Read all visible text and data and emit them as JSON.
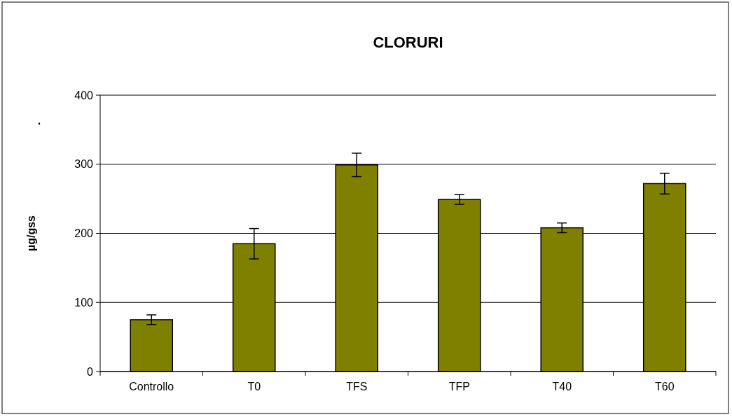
{
  "chart_data": {
    "type": "bar",
    "title": "CLORURI",
    "ylabel": "µg/gss",
    "annotations": [
      "."
    ],
    "categories": [
      "Controllo",
      "T0",
      "TFS",
      "TFP",
      "T40",
      "T60"
    ],
    "values": [
      75,
      185,
      299,
      249,
      208,
      272
    ],
    "errors": [
      7,
      22,
      17,
      7,
      7,
      15
    ],
    "color": "#808000",
    "ylim": [
      0,
      400
    ],
    "yticks": [
      0,
      100,
      200,
      300,
      400
    ],
    "grid": "y"
  }
}
